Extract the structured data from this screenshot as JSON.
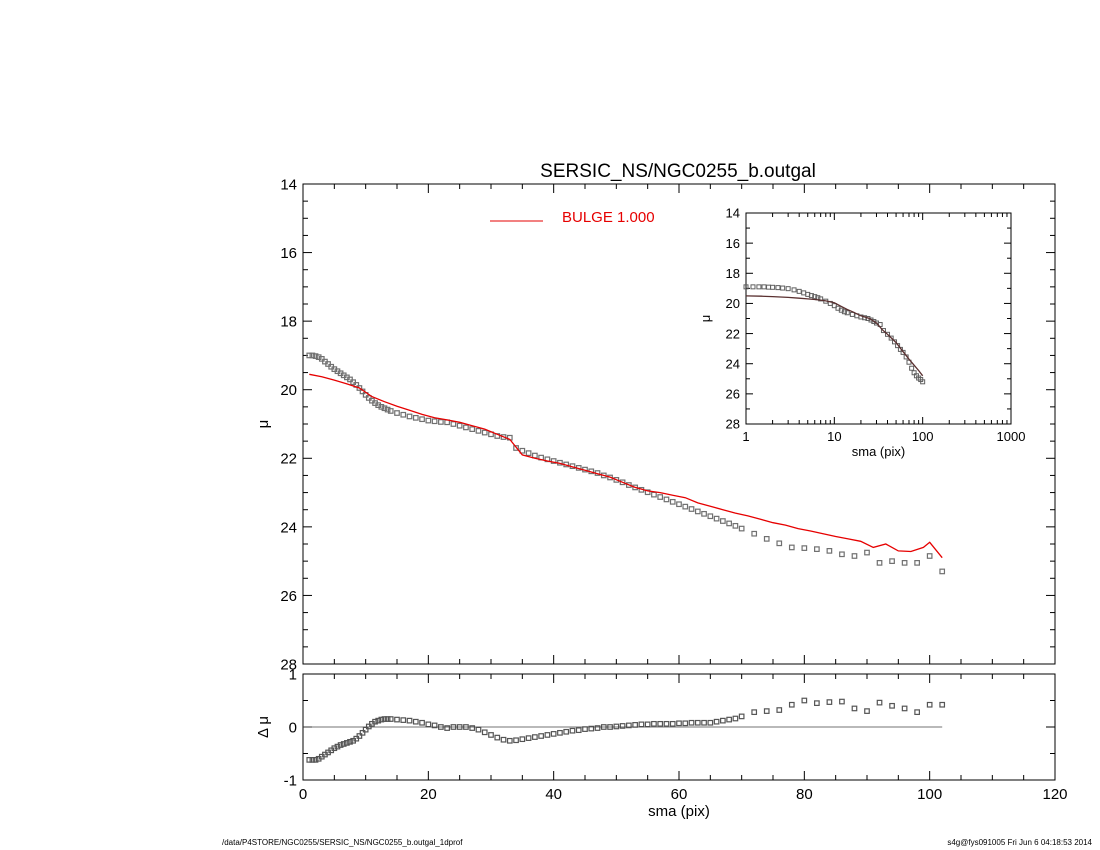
{
  "footer": {
    "path": "/data/P4STORE/NGC0255/SERSIC_NS/NGC0255_b.outgal_1dprof",
    "stamp": "s4g@fys091005  Fri Jun  6 04:18:53 2014"
  },
  "colors": {
    "model": "#e60000",
    "data": "#707070",
    "inset_model": "#5a3030"
  },
  "chart_data": [
    {
      "type": "scatter",
      "title": "SERSIC_NS/NGC0255_b.outgal",
      "xlabel": "",
      "ylabel": "μ",
      "xlim": [
        0,
        120
      ],
      "ylim": [
        28,
        14
      ],
      "y_reversed": true,
      "x_ticks": [
        0,
        20,
        40,
        60,
        80,
        100,
        120
      ],
      "y_ticks": [
        14,
        16,
        18,
        20,
        22,
        24,
        26,
        28
      ],
      "legend": {
        "label": "BULGE  1.000",
        "position": "top-center"
      },
      "series": [
        {
          "name": "",
          "kind": "points",
          "x": [
            1,
            1.5,
            2,
            2.5,
            3,
            3.5,
            4,
            4.5,
            5,
            5.5,
            6,
            6.5,
            7,
            7.5,
            8,
            8.5,
            9,
            9.5,
            10,
            10.5,
            11,
            11.5,
            12,
            12.5,
            13,
            13.5,
            14,
            15,
            16,
            17,
            18,
            19,
            20,
            21,
            22,
            23,
            24,
            25,
            26,
            27,
            28,
            29,
            30,
            31,
            32,
            33,
            34,
            35,
            36,
            37,
            38,
            39,
            40,
            41,
            42,
            43,
            44,
            45,
            46,
            47,
            48,
            49,
            50,
            51,
            52,
            53,
            54,
            55,
            56,
            57,
            58,
            59,
            60,
            61,
            62,
            63,
            64,
            65,
            66,
            67,
            68,
            69,
            70,
            72,
            74,
            76,
            78,
            80,
            82,
            84,
            86,
            88,
            90,
            92,
            94,
            96,
            98,
            100,
            102
          ],
          "y": [
            19.0,
            19.0,
            19.02,
            19.05,
            19.1,
            19.18,
            19.25,
            19.33,
            19.4,
            19.46,
            19.52,
            19.58,
            19.64,
            19.7,
            19.78,
            19.86,
            19.95,
            20.05,
            20.15,
            20.24,
            20.32,
            20.39,
            20.45,
            20.5,
            20.54,
            20.58,
            20.62,
            20.68,
            20.73,
            20.78,
            20.82,
            20.86,
            20.9,
            20.92,
            20.94,
            20.95,
            21.0,
            21.05,
            21.1,
            21.15,
            21.2,
            21.25,
            21.3,
            21.35,
            21.38,
            21.4,
            21.7,
            21.78,
            21.85,
            21.92,
            21.98,
            22.03,
            22.08,
            22.13,
            22.18,
            22.23,
            22.28,
            22.33,
            22.38,
            22.43,
            22.5,
            22.56,
            22.63,
            22.7,
            22.78,
            22.85,
            22.92,
            22.99,
            23.06,
            23.13,
            23.2,
            23.27,
            23.34,
            23.41,
            23.48,
            23.55,
            23.62,
            23.69,
            23.76,
            23.83,
            23.9,
            23.97,
            24.05,
            24.2,
            24.35,
            24.48,
            24.6,
            24.62,
            24.65,
            24.7,
            24.8,
            24.85,
            24.75,
            25.05,
            25.0,
            25.05,
            25.05,
            24.85,
            25.3
          ]
        },
        {
          "name": "",
          "kind": "line",
          "color_key": "model",
          "x": [
            1,
            3,
            5,
            7,
            9,
            11,
            13,
            15,
            17,
            19,
            21,
            23,
            25,
            27,
            29,
            31,
            33,
            35,
            37,
            39,
            41,
            43,
            45,
            47,
            49,
            51,
            53,
            55,
            57,
            59,
            61,
            63,
            65,
            67,
            69,
            71,
            73,
            75,
            77,
            79,
            81,
            83,
            85,
            87,
            89,
            91,
            93,
            95,
            97,
            99,
            100,
            102
          ],
          "y": [
            19.55,
            19.62,
            19.72,
            19.83,
            19.95,
            20.2,
            20.35,
            20.48,
            20.6,
            20.72,
            20.82,
            20.88,
            20.95,
            21.05,
            21.15,
            21.3,
            21.45,
            21.9,
            22.0,
            22.08,
            22.15,
            22.25,
            22.35,
            22.45,
            22.55,
            22.7,
            22.85,
            22.95,
            23.0,
            23.08,
            23.15,
            23.3,
            23.4,
            23.5,
            23.6,
            23.68,
            23.78,
            23.88,
            23.95,
            24.05,
            24.12,
            24.2,
            24.28,
            24.35,
            24.42,
            24.6,
            24.5,
            24.7,
            24.72,
            24.6,
            24.45,
            24.9
          ]
        }
      ]
    },
    {
      "type": "scatter",
      "title": "",
      "xlabel": "sma (pix)",
      "ylabel": "Δ μ",
      "xlim": [
        0,
        120
      ],
      "ylim": [
        -1,
        1
      ],
      "x_ticks": [
        0,
        20,
        40,
        60,
        80,
        100,
        120
      ],
      "y_ticks": [
        -1,
        0,
        1
      ],
      "series": [
        {
          "name": "",
          "kind": "points",
          "x": [
            1,
            1.5,
            2,
            2.5,
            3,
            3.5,
            4,
            4.5,
            5,
            5.5,
            6,
            6.5,
            7,
            7.5,
            8,
            8.5,
            9,
            9.5,
            10,
            10.5,
            11,
            11.5,
            12,
            12.5,
            13,
            13.5,
            14,
            15,
            16,
            17,
            18,
            19,
            20,
            21,
            22,
            23,
            24,
            25,
            26,
            27,
            28,
            29,
            30,
            31,
            32,
            33,
            34,
            35,
            36,
            37,
            38,
            39,
            40,
            41,
            42,
            43,
            44,
            45,
            46,
            47,
            48,
            49,
            50,
            51,
            52,
            53,
            54,
            55,
            56,
            57,
            58,
            59,
            60,
            61,
            62,
            63,
            64,
            65,
            66,
            67,
            68,
            69,
            70,
            72,
            74,
            76,
            78,
            80,
            82,
            84,
            86,
            88,
            90,
            92,
            94,
            96,
            98,
            100,
            102
          ],
          "y": [
            -0.62,
            -0.62,
            -0.62,
            -0.6,
            -0.56,
            -0.52,
            -0.48,
            -0.44,
            -0.4,
            -0.37,
            -0.34,
            -0.32,
            -0.3,
            -0.28,
            -0.26,
            -0.22,
            -0.17,
            -0.11,
            -0.05,
            0.01,
            0.06,
            0.1,
            0.12,
            0.14,
            0.15,
            0.15,
            0.15,
            0.14,
            0.13,
            0.12,
            0.1,
            0.08,
            0.05,
            0.03,
            0.0,
            -0.02,
            0.0,
            0.0,
            0.0,
            -0.02,
            -0.05,
            -0.1,
            -0.15,
            -0.2,
            -0.24,
            -0.26,
            -0.25,
            -0.23,
            -0.21,
            -0.19,
            -0.17,
            -0.15,
            -0.13,
            -0.11,
            -0.09,
            -0.07,
            -0.06,
            -0.04,
            -0.03,
            -0.02,
            0.0,
            0.0,
            0.01,
            0.02,
            0.03,
            0.04,
            0.05,
            0.05,
            0.06,
            0.06,
            0.06,
            0.06,
            0.07,
            0.07,
            0.08,
            0.08,
            0.08,
            0.08,
            0.1,
            0.12,
            0.14,
            0.16,
            0.2,
            0.28,
            0.3,
            0.32,
            0.42,
            0.5,
            0.45,
            0.47,
            0.48,
            0.35,
            0.3,
            0.46,
            0.4,
            0.35,
            0.28,
            0.42,
            0.42
          ]
        },
        {
          "name": "",
          "kind": "zero-line",
          "x": [
            0,
            102
          ],
          "y": [
            0,
            0
          ]
        }
      ]
    },
    {
      "type": "scatter",
      "title": "",
      "xlabel": "sma (pix)",
      "ylabel": "μ",
      "x_scale": "log",
      "xlim": [
        1,
        1000
      ],
      "ylim": [
        28,
        14
      ],
      "y_reversed": true,
      "x_ticks": [
        1,
        10,
        100,
        1000
      ],
      "y_ticks": [
        14,
        16,
        18,
        20,
        22,
        24,
        26,
        28
      ],
      "series": [
        {
          "name": "",
          "kind": "points",
          "x": [
            1,
            1.2,
            1.4,
            1.6,
            1.8,
            2,
            2.3,
            2.6,
            3,
            3.5,
            4,
            4.5,
            5,
            5.5,
            6,
            6.5,
            7,
            8,
            9,
            10,
            11,
            12,
            13,
            14,
            16,
            18,
            20,
            22,
            24,
            26,
            28,
            30,
            33,
            36,
            40,
            44,
            48,
            52,
            56,
            60,
            65,
            70,
            75,
            80,
            85,
            90,
            95,
            100
          ],
          "y": [
            18.9,
            18.9,
            18.9,
            18.9,
            18.92,
            18.93,
            18.95,
            18.98,
            19.02,
            19.1,
            19.2,
            19.3,
            19.4,
            19.48,
            19.55,
            19.62,
            19.7,
            19.85,
            20.0,
            20.15,
            20.32,
            20.45,
            20.55,
            20.62,
            20.73,
            20.82,
            20.9,
            20.95,
            21.0,
            21.1,
            21.2,
            21.3,
            21.4,
            21.8,
            22.05,
            22.3,
            22.55,
            22.8,
            23.05,
            23.25,
            23.55,
            23.9,
            24.3,
            24.6,
            24.8,
            24.95,
            25.05,
            25.2
          ]
        },
        {
          "name": "",
          "kind": "line",
          "color_key": "inset_model",
          "x": [
            1,
            1.5,
            2,
            3,
            4,
            5,
            6,
            7,
            8,
            10,
            12,
            14,
            16,
            20,
            25,
            30,
            35,
            40,
            50,
            60,
            70,
            80,
            90,
            100
          ],
          "y": [
            19.5,
            19.52,
            19.55,
            19.6,
            19.65,
            19.7,
            19.74,
            19.78,
            19.83,
            19.95,
            20.2,
            20.4,
            20.55,
            20.82,
            21.0,
            21.3,
            21.75,
            22.05,
            22.6,
            23.2,
            23.7,
            24.1,
            24.45,
            24.8
          ]
        }
      ]
    }
  ]
}
